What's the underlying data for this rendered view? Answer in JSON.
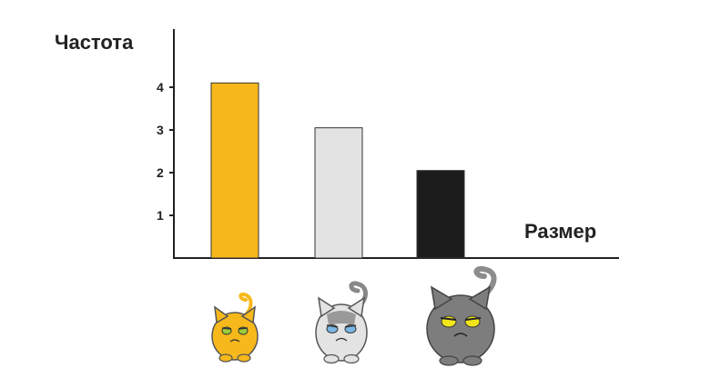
{
  "chart_data": {
    "type": "bar",
    "ylabel": "Частота",
    "xlabel": "Размер",
    "categories": [
      "small-orange-cat",
      "medium-white-cat",
      "large-gray-cat"
    ],
    "values": [
      4.1,
      3.05,
      2.05
    ],
    "yticks": [
      "1",
      "2",
      "3",
      "4"
    ],
    "ylim": [
      0,
      5
    ],
    "bar_colors": [
      "#f7b81b",
      "#e3e3e3",
      "#1c1c1c"
    ],
    "grid": false
  }
}
